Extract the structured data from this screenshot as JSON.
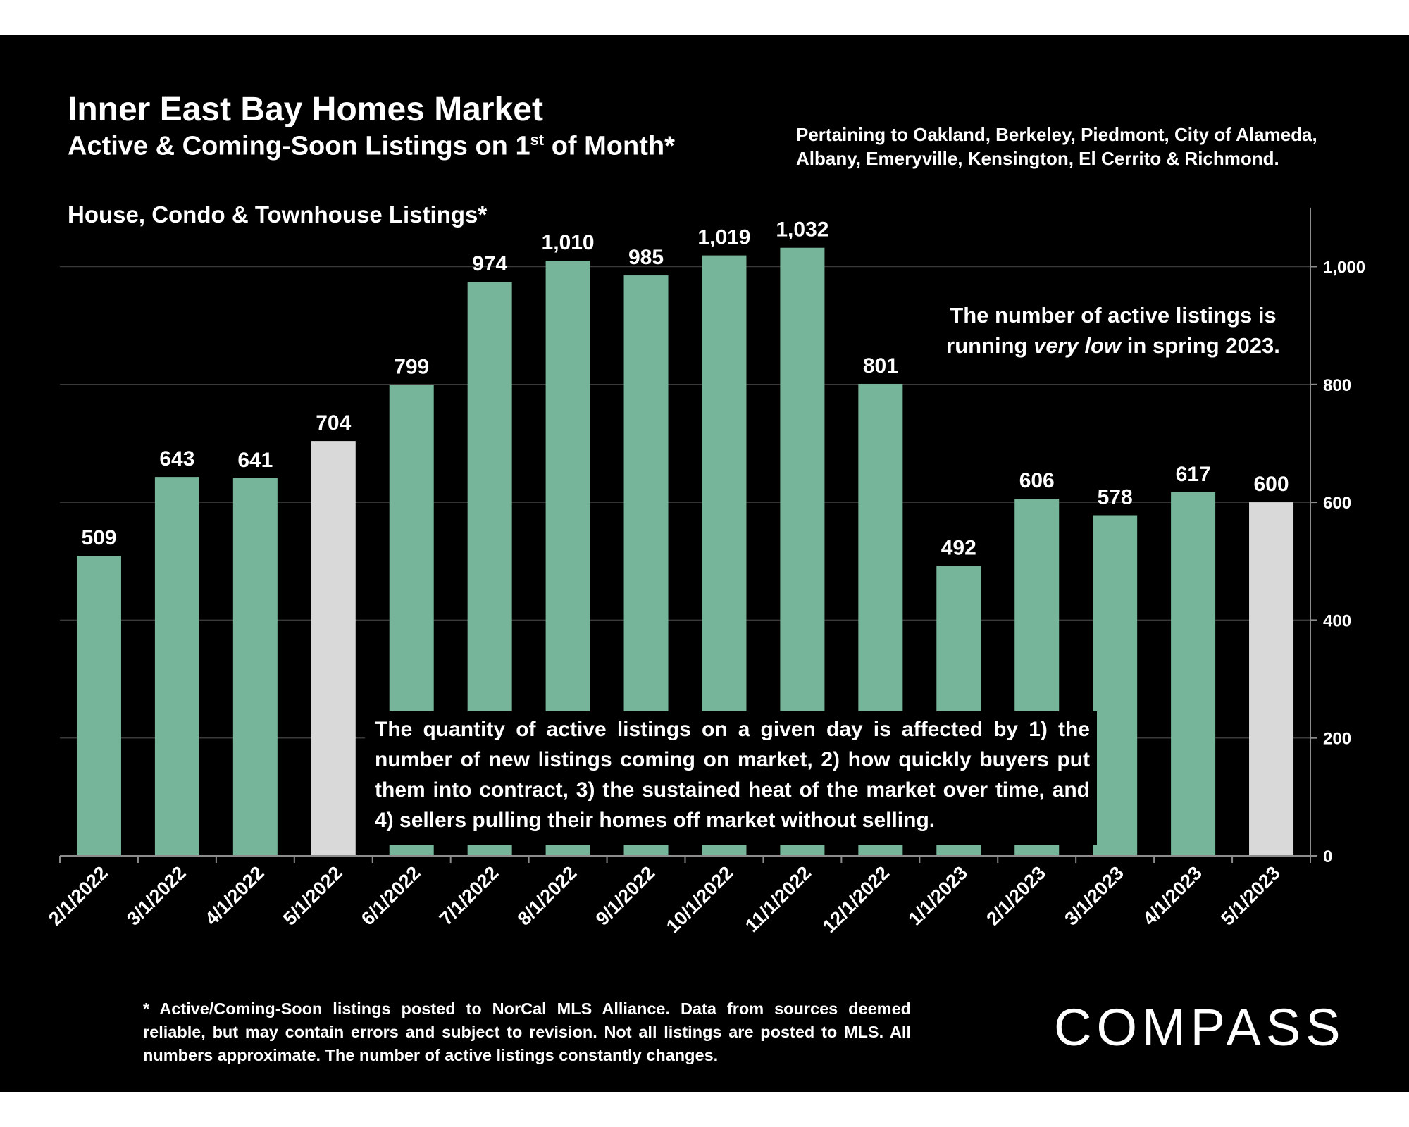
{
  "header": {
    "title": "Inner East Bay Homes Market",
    "subtitle_main": "Active & Coming-Soon Listings on 1",
    "subtitle_sup": "st",
    "subtitle_end": " of Month*",
    "pertaining": "Pertaining to Oakland, Berkeley, Piedmont, City of Alameda, Albany, Emeryville, Kensington, El Cerrito & Richmond."
  },
  "annotations": {
    "low_before": "The number of active listings is running ",
    "low_emph": "very low",
    "low_after": " in spring 2023.",
    "quantity": "The quantity of active listings on a given day is affected by 1) the number of new listings coming on market, 2) how quickly buyers put them into contract, 3) the sustained heat of the market over time, and 4) sellers pulling their homes off market without selling."
  },
  "footnote": "* Active/Coming-Soon listings posted to NorCal MLS Alliance.  Data from sources deemed reliable, but may contain errors and subject to revision.  Not all listings are posted to MLS. All numbers approximate. The number of active listings constantly changes.",
  "logo": "COMPASS",
  "chart_data": {
    "type": "bar",
    "title": "House, Condo & Townhouse Listings*",
    "xlabel": "",
    "ylabel": "",
    "categories": [
      "2/1/2022",
      "3/1/2022",
      "4/1/2022",
      "5/1/2022",
      "6/1/2022",
      "7/1/2022",
      "8/1/2022",
      "9/1/2022",
      "10/1/2022",
      "11/1/2022",
      "12/1/2022",
      "1/1/2023",
      "2/1/2023",
      "3/1/2023",
      "4/1/2023",
      "5/1/2023"
    ],
    "values": [
      509,
      643,
      641,
      704,
      799,
      974,
      1010,
      985,
      1019,
      1032,
      801,
      492,
      606,
      578,
      617,
      600
    ],
    "value_labels": [
      "509",
      "643",
      "641",
      "704",
      "799",
      "974",
      "1,010",
      "985",
      "1,019",
      "1,032",
      "801",
      "492",
      "606",
      "578",
      "617",
      "600"
    ],
    "highlight_indices": [
      3,
      15
    ],
    "ylim": [
      0,
      1100
    ],
    "yticks": [
      0,
      200,
      400,
      600,
      800,
      1000
    ],
    "ytick_labels": [
      "0",
      "200",
      "400",
      "600",
      "800",
      "1,000"
    ],
    "y_axis_side": "right",
    "grid": true,
    "colors": {
      "bar": "#76b59a",
      "highlight": "#d9d9d9",
      "background": "#000000",
      "grid": "#3a3a3a",
      "axis": "#8c8c8c",
      "text": "#ffffff"
    }
  }
}
